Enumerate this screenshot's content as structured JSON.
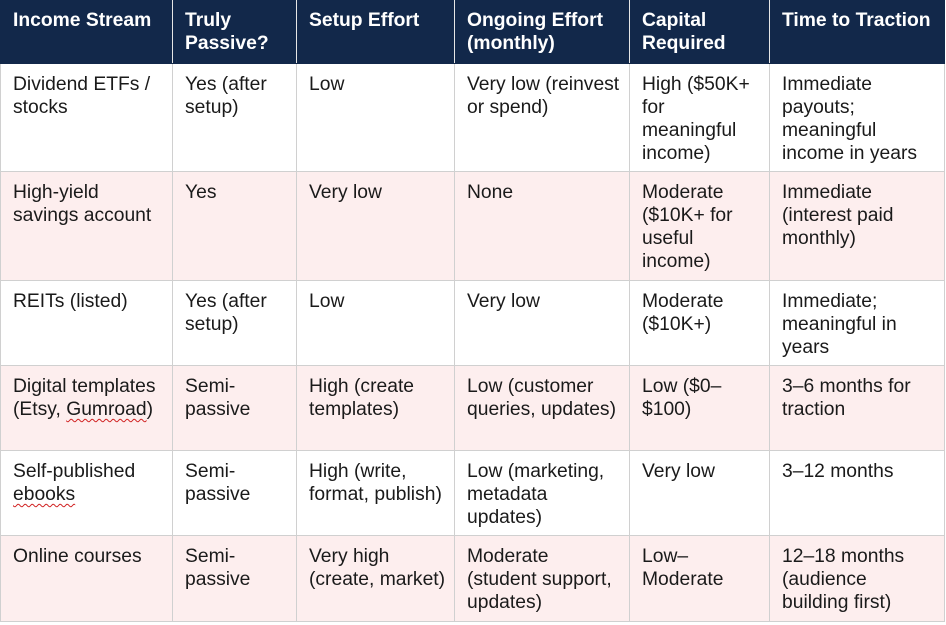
{
  "table": {
    "headers": [
      "Income Stream",
      "Truly Passive?",
      "Setup Effort",
      "Ongoing Effort (monthly)",
      "Capital Required",
      "Time to Traction"
    ],
    "rows": [
      {
        "cells": [
          "Dividend ETFs / stocks",
          "Yes (after setup)",
          "Low",
          "Very low (reinvest or spend)",
          "High ($50K+ for meaningful income)",
          "Immediate payouts; meaningful income in years"
        ]
      },
      {
        "cells": [
          "High-yield savings account",
          "Yes",
          "Very low",
          "None",
          "Moderate ($10K+ for useful income)",
          "Immediate (interest paid monthly)"
        ]
      },
      {
        "cells": [
          "REITs (listed)",
          "Yes (after setup)",
          "Low",
          "Very low",
          "Moderate ($10K+)",
          "Immediate; meaningful in years"
        ]
      },
      {
        "cells": [
          "Digital templates (Etsy, ",
          "Semi-passive",
          "High (create templates)",
          "Low (customer queries, updates)",
          "Low ($0–$100)",
          "3–6 months for traction"
        ],
        "name_spellcheck": "Gumroad",
        "name_suffix": ")"
      },
      {
        "cells": [
          "Self-published ",
          "Semi-passive",
          "High (write, format, publish)",
          "Low (marketing, metadata updates)",
          "Very low",
          "3–12 months"
        ],
        "name_spellcheck": "ebooks",
        "name_suffix": ""
      },
      {
        "cells": [
          "Online courses",
          "Semi-passive",
          "Very high (create, market)",
          "Moderate (student support, updates)",
          "Low–Moderate",
          "12–18 months (audience building first)"
        ]
      }
    ]
  }
}
